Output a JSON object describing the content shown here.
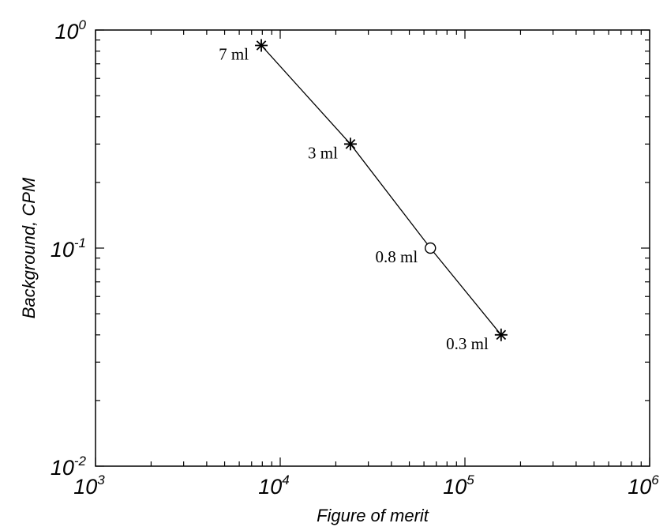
{
  "chart_data": {
    "type": "line",
    "title": "",
    "xlabel": "Figure of merit",
    "ylabel": "Background, CPM",
    "xscale": "log",
    "yscale": "log",
    "xlim": [
      1000,
      1000000
    ],
    "ylim": [
      0.01,
      1
    ],
    "grid": false,
    "x_ticks": [
      {
        "value": 1000,
        "base": "10",
        "exp": "3"
      },
      {
        "value": 10000,
        "base": "10",
        "exp": "4"
      },
      {
        "value": 100000,
        "base": "10",
        "exp": "5"
      },
      {
        "value": 1000000,
        "base": "10",
        "exp": "6"
      }
    ],
    "y_ticks": [
      {
        "value": 1,
        "base": "10",
        "exp": "0"
      },
      {
        "value": 0.1,
        "base": "10",
        "exp": "-1"
      },
      {
        "value": 0.01,
        "base": "10",
        "exp": "-2"
      }
    ],
    "series": [
      {
        "points": [
          {
            "x": 7900,
            "y": 0.85,
            "marker": "asterisk",
            "label": "7 ml"
          },
          {
            "x": 24000,
            "y": 0.3,
            "marker": "asterisk",
            "label": "3 ml"
          },
          {
            "x": 65000,
            "y": 0.1,
            "marker": "circle",
            "label": "0.8 ml"
          },
          {
            "x": 157000,
            "y": 0.04,
            "marker": "asterisk",
            "label": "0.3 ml"
          }
        ]
      }
    ]
  }
}
